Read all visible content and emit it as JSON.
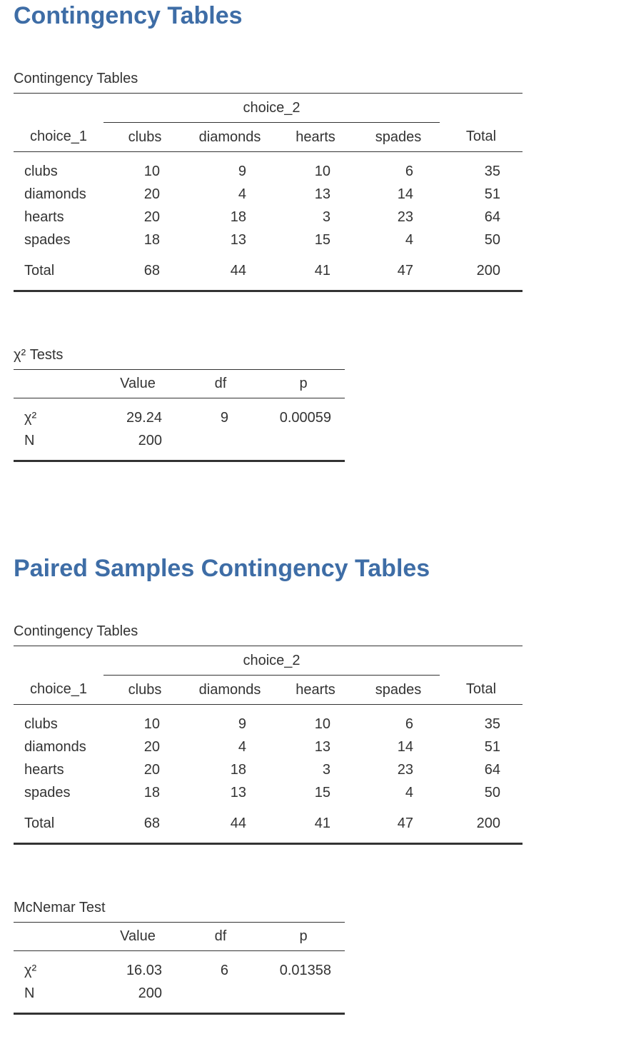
{
  "sections": [
    {
      "heading": "Contingency Tables",
      "contingency": {
        "title": "Contingency Tables",
        "col_var": "choice_2",
        "row_var": "choice_1",
        "columns": [
          "clubs",
          "diamonds",
          "hearts",
          "spades"
        ],
        "total_label": "Total",
        "rows": [
          {
            "label": "clubs",
            "values": [
              "10",
              "9",
              "10",
              "6"
            ],
            "total": "35"
          },
          {
            "label": "diamonds",
            "values": [
              "20",
              "4",
              "13",
              "14"
            ],
            "total": "51"
          },
          {
            "label": "hearts",
            "values": [
              "20",
              "18",
              "3",
              "23"
            ],
            "total": "64"
          },
          {
            "label": "spades",
            "values": [
              "18",
              "13",
              "15",
              "4"
            ],
            "total": "50"
          }
        ],
        "totals": {
          "label": "Total",
          "values": [
            "68",
            "44",
            "41",
            "47"
          ],
          "total": "200"
        }
      },
      "test": {
        "title": "χ² Tests",
        "headers": [
          "",
          "Value",
          "df",
          "p"
        ],
        "rows": [
          {
            "label": "χ²",
            "value": "29.24",
            "df": "9",
            "p": "0.00059"
          },
          {
            "label": "N",
            "value": "200",
            "df": "",
            "p": ""
          }
        ]
      }
    },
    {
      "heading": "Paired Samples Contingency Tables",
      "contingency": {
        "title": "Contingency Tables",
        "col_var": "choice_2",
        "row_var": "choice_1",
        "columns": [
          "clubs",
          "diamonds",
          "hearts",
          "spades"
        ],
        "total_label": "Total",
        "rows": [
          {
            "label": "clubs",
            "values": [
              "10",
              "9",
              "10",
              "6"
            ],
            "total": "35"
          },
          {
            "label": "diamonds",
            "values": [
              "20",
              "4",
              "13",
              "14"
            ],
            "total": "51"
          },
          {
            "label": "hearts",
            "values": [
              "20",
              "18",
              "3",
              "23"
            ],
            "total": "64"
          },
          {
            "label": "spades",
            "values": [
              "18",
              "13",
              "15",
              "4"
            ],
            "total": "50"
          }
        ],
        "totals": {
          "label": "Total",
          "values": [
            "68",
            "44",
            "41",
            "47"
          ],
          "total": "200"
        }
      },
      "test": {
        "title": "McNemar Test",
        "headers": [
          "",
          "Value",
          "df",
          "p"
        ],
        "rows": [
          {
            "label": "χ²",
            "value": "16.03",
            "df": "6",
            "p": "0.01358"
          },
          {
            "label": "N",
            "value": "200",
            "df": "",
            "p": ""
          }
        ]
      }
    }
  ]
}
